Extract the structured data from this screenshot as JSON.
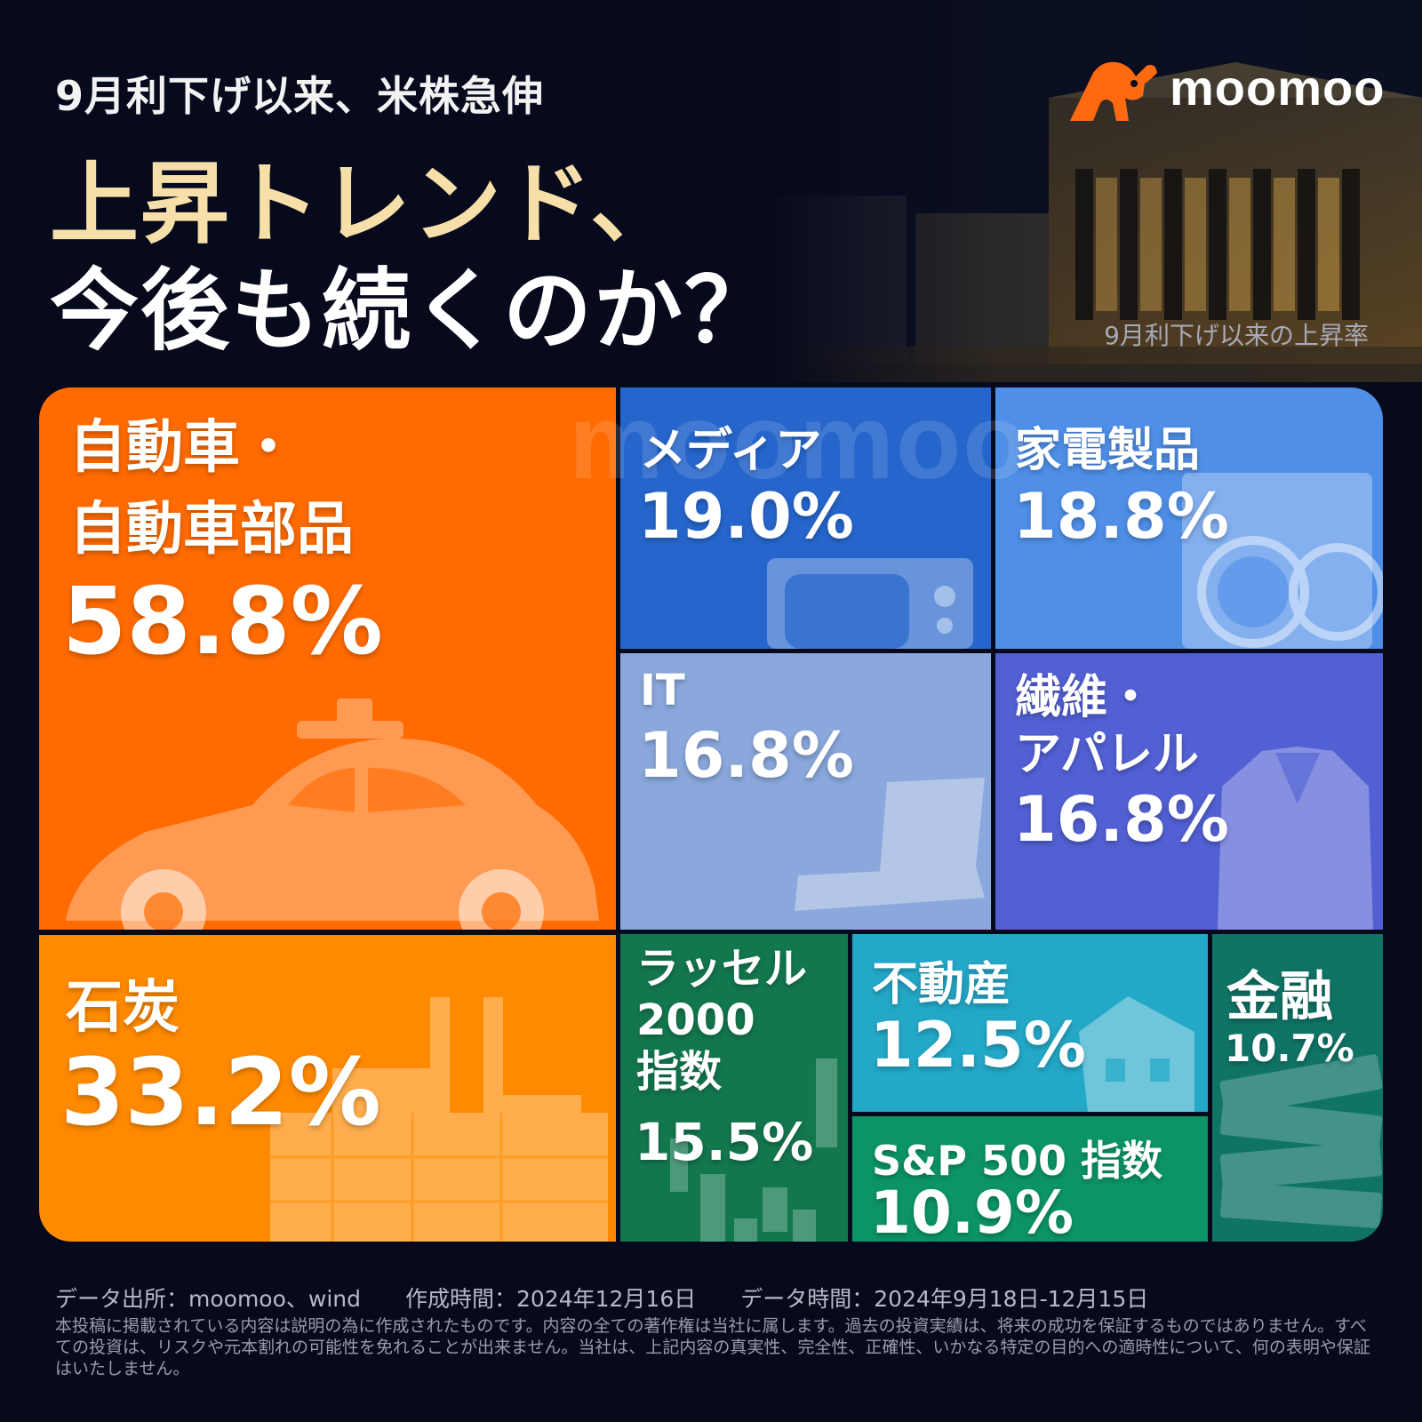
{
  "header": {
    "subtitle": "9月利下げ以来、米株急伸",
    "headline_line1": "上昇トレンド、",
    "headline_line2": "今後も続くのか？",
    "brand": "moomoo",
    "brand_color": "#ff6a10"
  },
  "chart_data": {
    "type": "treemap",
    "title": "9月利下げ以来の上昇率",
    "unit": "%",
    "items": [
      {
        "label": "自動車・\n自動車部品",
        "value": 58.8,
        "display": "58.8%",
        "color": "#ff6b00",
        "icon": "car-icon"
      },
      {
        "label": "石炭",
        "value": 33.2,
        "display": "33.2%",
        "color": "#ff8a00",
        "icon": "factory-icon"
      },
      {
        "label": "メディア",
        "value": 19.0,
        "display": "19.0%",
        "color": "#2666cc",
        "icon": "tv-icon"
      },
      {
        "label": "家電製品",
        "value": 18.8,
        "display": "18.8%",
        "color": "#4f8fe8",
        "icon": "washing-machine-icon"
      },
      {
        "label": "IT",
        "value": 16.8,
        "display": "16.8%",
        "color": "#8aa8dc",
        "icon": "laptop-icon"
      },
      {
        "label": "繊維・\nアパレル",
        "value": 16.8,
        "display": "16.8%",
        "color": "#5260d4",
        "icon": "jacket-icon"
      },
      {
        "label": "ラッセル\n2000\n指数",
        "value": 15.5,
        "display": "15.5%",
        "color": "#13774e",
        "icon": "candlestick-icon"
      },
      {
        "label": "不動産",
        "value": 12.5,
        "display": "12.5%",
        "color": "#23a8c8",
        "icon": "house-icon"
      },
      {
        "label": "S&P 500 指数",
        "value": 10.9,
        "display": "10.9%",
        "color": "#0c9466",
        "icon": "none"
      },
      {
        "label": "金融",
        "value": 10.7,
        "display": "10.7%",
        "color": "#0f7466",
        "icon": "money-icon"
      }
    ]
  },
  "watermark": "moomoo",
  "footer": {
    "source": "データ出所：moomoo、wind　　作成時間：2024年12月16日　　データ時間：2024年9月18日-12月15日",
    "disclaimer": "本投稿に掲載されている内容は説明の為に作成されたものです。内容の全ての著作権は当社に属します。過去の投資実績は、将来の成功を保証するものではありません。すべての投資は、リスクや元本割れの可能性を免れることが出来ません。当社は、上記内容の真実性、完全性、正確性、いかなる特定の目的への適時性について、何の表明や保証はいたしません。"
  }
}
